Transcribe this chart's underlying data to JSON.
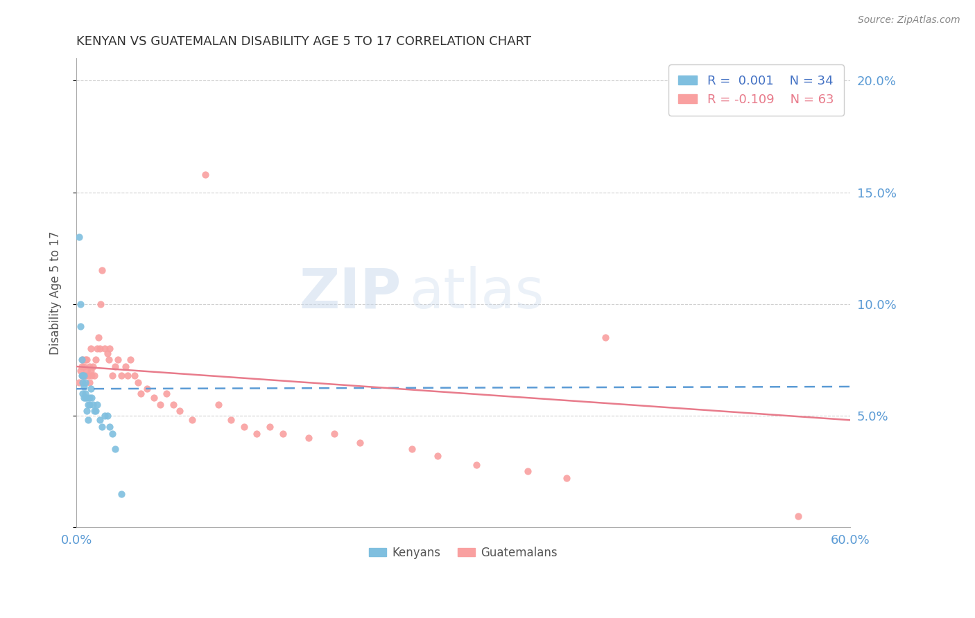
{
  "title": "KENYAN VS GUATEMALAN DISABILITY AGE 5 TO 17 CORRELATION CHART",
  "source_text": "Source: ZipAtlas.com",
  "ylabel": "Disability Age 5 to 17",
  "xlim": [
    0.0,
    0.6
  ],
  "ylim": [
    0.0,
    0.21
  ],
  "x_ticks": [
    0.0,
    0.06,
    0.12,
    0.18,
    0.24,
    0.3,
    0.36,
    0.42,
    0.48,
    0.54,
    0.6
  ],
  "x_tick_labels": [
    "0.0%",
    "",
    "",
    "",
    "",
    "",
    "",
    "",
    "",
    "",
    "60.0%"
  ],
  "y_ticks": [
    0.0,
    0.05,
    0.1,
    0.15,
    0.2
  ],
  "y_tick_labels": [
    "",
    "5.0%",
    "10.0%",
    "15.0%",
    "20.0%"
  ],
  "kenyan_color": "#7fbfdf",
  "guatemalan_color": "#f9a0a0",
  "kenyan_line_color": "#5b9bd5",
  "guatemalan_line_color": "#e87b8b",
  "kenyan_R": 0.001,
  "kenyan_N": 34,
  "guatemalan_R": -0.109,
  "guatemalan_N": 63,
  "watermark": "ZIPatlas",
  "background_color": "#ffffff",
  "grid_color": "#d0d0d0",
  "kenyan_x": [
    0.002,
    0.003,
    0.003,
    0.004,
    0.004,
    0.005,
    0.005,
    0.005,
    0.006,
    0.006,
    0.006,
    0.007,
    0.007,
    0.007,
    0.008,
    0.008,
    0.009,
    0.009,
    0.01,
    0.01,
    0.011,
    0.012,
    0.013,
    0.014,
    0.015,
    0.016,
    0.018,
    0.02,
    0.022,
    0.024,
    0.026,
    0.028,
    0.03,
    0.035
  ],
  "kenyan_y": [
    0.13,
    0.09,
    0.1,
    0.075,
    0.068,
    0.065,
    0.06,
    0.068,
    0.063,
    0.068,
    0.058,
    0.06,
    0.065,
    0.058,
    0.058,
    0.052,
    0.055,
    0.048,
    0.055,
    0.058,
    0.062,
    0.058,
    0.055,
    0.052,
    0.052,
    0.055,
    0.048,
    0.045,
    0.05,
    0.05,
    0.045,
    0.042,
    0.035,
    0.015
  ],
  "guatemalan_x": [
    0.002,
    0.003,
    0.004,
    0.005,
    0.005,
    0.006,
    0.006,
    0.007,
    0.007,
    0.008,
    0.008,
    0.009,
    0.01,
    0.01,
    0.011,
    0.011,
    0.012,
    0.013,
    0.014,
    0.015,
    0.016,
    0.017,
    0.018,
    0.019,
    0.02,
    0.022,
    0.024,
    0.025,
    0.026,
    0.028,
    0.03,
    0.032,
    0.035,
    0.038,
    0.04,
    0.042,
    0.045,
    0.048,
    0.05,
    0.055,
    0.06,
    0.065,
    0.07,
    0.075,
    0.08,
    0.09,
    0.1,
    0.11,
    0.12,
    0.13,
    0.14,
    0.15,
    0.16,
    0.18,
    0.2,
    0.22,
    0.26,
    0.28,
    0.31,
    0.35,
    0.38,
    0.41,
    0.56
  ],
  "guatemalan_y": [
    0.065,
    0.07,
    0.072,
    0.068,
    0.075,
    0.068,
    0.072,
    0.068,
    0.075,
    0.07,
    0.075,
    0.068,
    0.065,
    0.072,
    0.07,
    0.08,
    0.068,
    0.072,
    0.068,
    0.075,
    0.08,
    0.085,
    0.08,
    0.1,
    0.115,
    0.08,
    0.078,
    0.075,
    0.08,
    0.068,
    0.072,
    0.075,
    0.068,
    0.072,
    0.068,
    0.075,
    0.068,
    0.065,
    0.06,
    0.062,
    0.058,
    0.055,
    0.06,
    0.055,
    0.052,
    0.048,
    0.158,
    0.055,
    0.048,
    0.045,
    0.042,
    0.045,
    0.042,
    0.04,
    0.042,
    0.038,
    0.035,
    0.032,
    0.028,
    0.025,
    0.022,
    0.085,
    0.005
  ],
  "kenyan_trend_x": [
    0.0,
    0.6
  ],
  "kenyan_trend_y": [
    0.062,
    0.063
  ],
  "guatemalan_trend_x_start": 0.0,
  "guatemalan_trend_x_end": 0.6,
  "guatemalan_trend_y_start": 0.072,
  "guatemalan_trend_y_end": 0.048
}
